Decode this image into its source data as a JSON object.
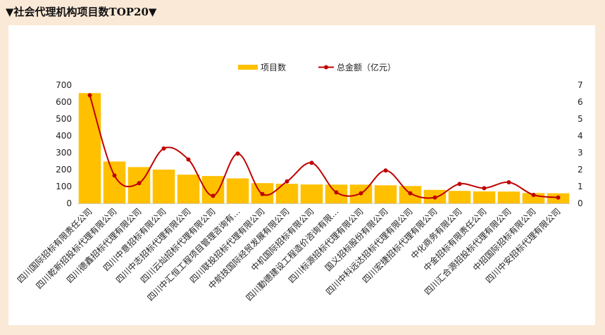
{
  "title": "▼社会代理机构项目数TOP20▼",
  "chart_data": {
    "type": "bar",
    "categories": [
      "四川国际招标有限责任公司",
      "四川乾新招投标代理有限公司",
      "四川德鑫招标代理有限公司",
      "四川中意招标有限公司",
      "四川中志招标代理有限公司",
      "四川云灿招标代理有限公司",
      "四川中汇恒工程项目管理咨询有…",
      "四川联投招标代理有限公司",
      "中航技国际经贸发展有限公司",
      "中机国际招标有限公司",
      "四川勤德建设工程造价咨询有限…",
      "四川标源招标代理有限公司",
      "国义招标股份有限公司",
      "四川中科远达招标代理有限公司",
      "四川宏捷招标代理有限公司",
      "中化商务有限公司",
      "中金招标有限责任公司",
      "四川汇合源招投标代理有限公司",
      "中招国际招标有限公司",
      "四川中安招标代理有限公司"
    ],
    "series": [
      {
        "name": "项目数",
        "kind": "bar",
        "axis": "left",
        "color": "#ffc000",
        "values": [
          653,
          248,
          215,
          200,
          170,
          162,
          148,
          120,
          116,
          112,
          111,
          111,
          107,
          103,
          80,
          74,
          71,
          70,
          61,
          60
        ]
      },
      {
        "name": "总金额（亿元）",
        "kind": "line",
        "axis": "right",
        "color": "#c00000",
        "values": [
          6.4,
          1.65,
          1.2,
          3.25,
          2.6,
          0.45,
          2.95,
          0.55,
          1.3,
          2.4,
          0.65,
          0.6,
          1.95,
          0.6,
          0.35,
          1.15,
          0.9,
          1.25,
          0.5,
          0.35
        ]
      }
    ],
    "y_left": {
      "min": 0,
      "max": 700,
      "ticks": [
        "0",
        "100",
        "200",
        "300",
        "400",
        "500",
        "600",
        "700"
      ]
    },
    "y_right": {
      "min": 0,
      "max": 7,
      "ticks": [
        "0",
        "1",
        "2",
        "3",
        "4",
        "5",
        "6",
        "7"
      ]
    },
    "legend": {
      "position": "top",
      "items": [
        "项目数",
        "总金额（亿元）"
      ]
    },
    "grid": false
  }
}
